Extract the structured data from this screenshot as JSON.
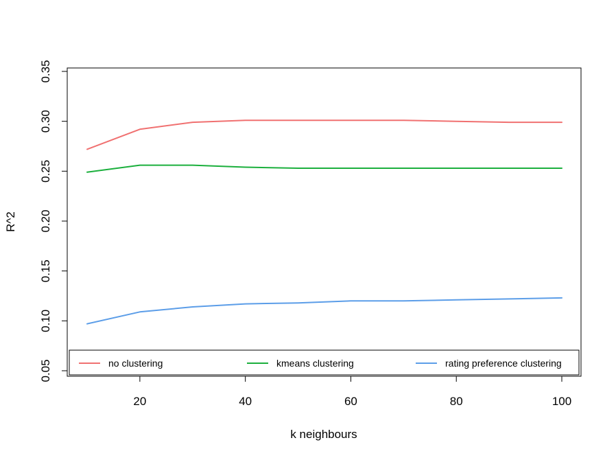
{
  "chart_data": {
    "type": "line",
    "title": "",
    "xlabel": "k neighbours",
    "ylabel": "R^2",
    "x": [
      10,
      20,
      30,
      40,
      50,
      60,
      70,
      80,
      90,
      100
    ],
    "xlim": [
      10,
      100
    ],
    "ylim": [
      0.05,
      0.35
    ],
    "x_ticks": [
      20,
      40,
      60,
      80,
      100
    ],
    "x_tick_labels": [
      "20",
      "40",
      "60",
      "80",
      "100"
    ],
    "y_ticks": [
      0.05,
      0.1,
      0.15,
      0.2,
      0.25,
      0.3,
      0.35
    ],
    "y_tick_labels": [
      "0.05",
      "0.10",
      "0.15",
      "0.20",
      "0.25",
      "0.30",
      "0.35"
    ],
    "grid": false,
    "legend_position": "bottom",
    "series": [
      {
        "name": "no clustering",
        "color": "#f07070",
        "values": [
          0.272,
          0.292,
          0.299,
          0.301,
          0.301,
          0.301,
          0.301,
          0.3,
          0.299,
          0.299
        ]
      },
      {
        "name": "kmeans clustering",
        "color": "#1aaf3c",
        "values": [
          0.249,
          0.256,
          0.256,
          0.254,
          0.253,
          0.253,
          0.253,
          0.253,
          0.253,
          0.253
        ]
      },
      {
        "name": "rating preference clustering",
        "color": "#5b9de8",
        "values": [
          0.097,
          0.109,
          0.114,
          0.117,
          0.118,
          0.12,
          0.12,
          0.121,
          0.122,
          0.123
        ]
      }
    ]
  }
}
